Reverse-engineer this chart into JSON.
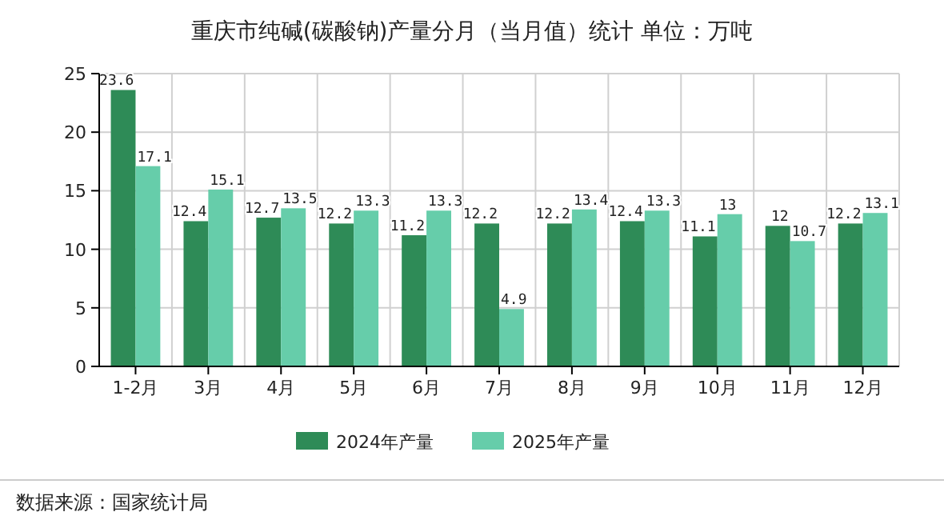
{
  "chart_data": {
    "type": "bar",
    "title": "重庆市纯碱(碳酸钠)产量分月（当月值）统计 单位：万吨",
    "categories": [
      "1-2月",
      "3月",
      "4月",
      "5月",
      "6月",
      "7月",
      "8月",
      "9月",
      "10月",
      "11月",
      "12月"
    ],
    "series": [
      {
        "name": "2024年产量",
        "color": "#2e8b57",
        "values": [
          23.6,
          12.4,
          12.7,
          12.2,
          11.2,
          12.2,
          12.2,
          12.4,
          11.1,
          12,
          12.2
        ]
      },
      {
        "name": "2025年产量",
        "color": "#66cdaa",
        "values": [
          17.1,
          15.1,
          13.5,
          13.3,
          13.3,
          4.9,
          13.4,
          13.3,
          13,
          10.7,
          13.1
        ]
      }
    ],
    "ylim": [
      0,
      25
    ],
    "yticks": [
      0,
      5,
      10,
      15,
      20,
      25
    ],
    "grid": true,
    "legend": "bottom",
    "data_labels": true,
    "annotations": [
      "数据来源：国家统计局"
    ]
  }
}
